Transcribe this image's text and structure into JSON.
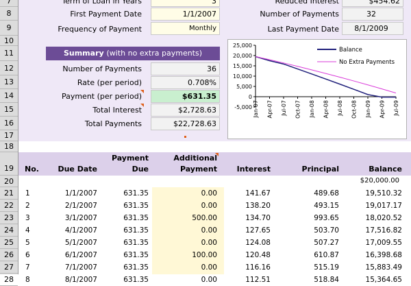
{
  "rows": [
    "7",
    "8",
    "9",
    "10",
    "11",
    "12",
    "13",
    "14",
    "15",
    "16",
    "17",
    "18",
    "19",
    "20",
    "21",
    "22",
    "23",
    "24",
    "25",
    "26",
    "27",
    "28"
  ],
  "inputs": {
    "term_label": "Term of Loan in Years",
    "term_value": "3",
    "first_payment_label": "First Payment Date",
    "first_payment_value": "1/1/2007",
    "frequency_label": "Frequency of Payment",
    "frequency_value": "Monthly"
  },
  "extra_results": {
    "reduced_interest_label": "Reduced Interest",
    "reduced_interest_value": "$454.62",
    "num_payments_label": "Number of Payments",
    "num_payments_value": "32",
    "last_payment_label": "Last Payment Date",
    "last_payment_value": "8/1/2009"
  },
  "summary": {
    "title": "Summary",
    "subtitle": "(with no extra payments)",
    "num_payments_label": "Number of Payments",
    "num_payments_value": "36",
    "rate_label": "Rate (per period)",
    "rate_value": "0.708%",
    "payment_label": "Payment (per period)",
    "payment_value": "$631.35",
    "total_interest_label": "Total Interest",
    "total_interest_value": "$2,728.63",
    "total_payments_label": "Total Payments",
    "total_payments_value": "$22,728.63"
  },
  "chart_data": {
    "type": "line",
    "x": [
      "Jan-07",
      "Apr-07",
      "Jul-07",
      "Oct-07",
      "Jan-08",
      "Apr-08",
      "Jul-08",
      "Oct-08",
      "Jan-09",
      "Apr-09",
      "Jul-09"
    ],
    "yticks": [
      "25,000",
      "20,000",
      "15,000",
      "10,000",
      "5,000",
      "0",
      "-5,000"
    ],
    "ylim": [
      -5000,
      25000
    ],
    "legend_position": "top-right",
    "series": [
      {
        "name": "Balance",
        "color": "#1f1f7a",
        "values": [
          19510,
          17510,
          15883,
          13480,
          11050,
          8600,
          6120,
          3600,
          1050,
          -200,
          -200
        ]
      },
      {
        "name": "No Extra Payments",
        "color": "#d93ad9",
        "values": [
          19510,
          18000,
          16400,
          14750,
          13050,
          11300,
          9500,
          7650,
          5750,
          3800,
          1800
        ]
      }
    ]
  },
  "schedule": {
    "headers": {
      "no": "No.",
      "due_date": "Due Date",
      "payment_due_1": "Payment",
      "payment_due_2": "Due",
      "additional_1": "Additional",
      "additional_2": "Payment",
      "interest": "Interest",
      "principal": "Principal",
      "balance": "Balance"
    },
    "start_balance": "$20,000.00",
    "rows": [
      {
        "no": "1",
        "date": "1/1/2007",
        "due": "631.35",
        "add": "0.00",
        "interest": "141.67",
        "principal": "489.68",
        "balance": "19,510.32"
      },
      {
        "no": "2",
        "date": "2/1/2007",
        "due": "631.35",
        "add": "0.00",
        "interest": "138.20",
        "principal": "493.15",
        "balance": "19,017.17"
      },
      {
        "no": "3",
        "date": "3/1/2007",
        "due": "631.35",
        "add": "500.00",
        "interest": "134.70",
        "principal": "993.65",
        "balance": "18,020.52"
      },
      {
        "no": "4",
        "date": "4/1/2007",
        "due": "631.35",
        "add": "0.00",
        "interest": "127.65",
        "principal": "503.70",
        "balance": "17,516.82"
      },
      {
        "no": "5",
        "date": "5/1/2007",
        "due": "631.35",
        "add": "0.00",
        "interest": "124.08",
        "principal": "507.27",
        "balance": "17,009.55"
      },
      {
        "no": "6",
        "date": "6/1/2007",
        "due": "631.35",
        "add": "100.00",
        "interest": "120.48",
        "principal": "610.87",
        "balance": "16,398.68"
      },
      {
        "no": "7",
        "date": "7/1/2007",
        "due": "631.35",
        "add": "0.00",
        "interest": "116.16",
        "principal": "515.19",
        "balance": "15,883.49"
      },
      {
        "no": "8",
        "date": "8/1/2007",
        "due": "631.35",
        "add": "0.00",
        "interest": "112.51",
        "principal": "518.84",
        "balance": "15,364.65"
      }
    ]
  }
}
